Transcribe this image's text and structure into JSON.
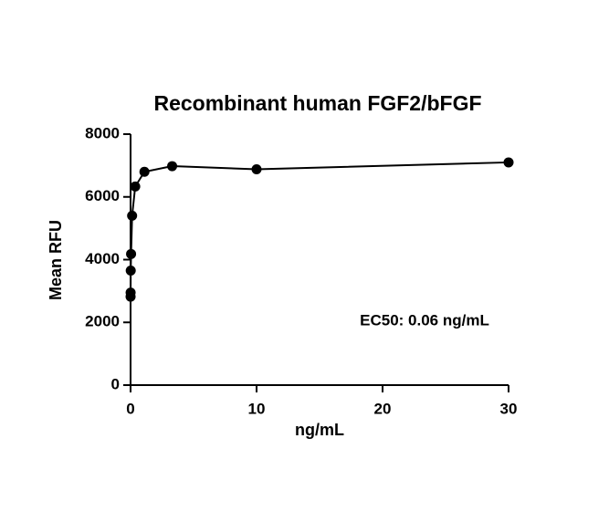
{
  "chart_data": {
    "type": "scatter",
    "title": "Recombinant human FGF2/bFGF",
    "x_label": "ng/mL",
    "y_label": "Mean RFU",
    "annotation": "EC50: 0.06 ng/mL",
    "x": [
      0.0015,
      0.0046,
      0.0137,
      0.041,
      0.123,
      0.37,
      1.1,
      3.3,
      10,
      30
    ],
    "values": [
      2820,
      2950,
      3650,
      4180,
      5400,
      6330,
      6800,
      6980,
      6880,
      7100
    ],
    "color": "#000000",
    "xlim": [
      0,
      30
    ],
    "xticks": [
      0,
      10,
      20,
      30
    ],
    "ylim": [
      0,
      8000
    ],
    "yticks": [
      0,
      2000,
      4000,
      6000,
      8000
    ]
  }
}
